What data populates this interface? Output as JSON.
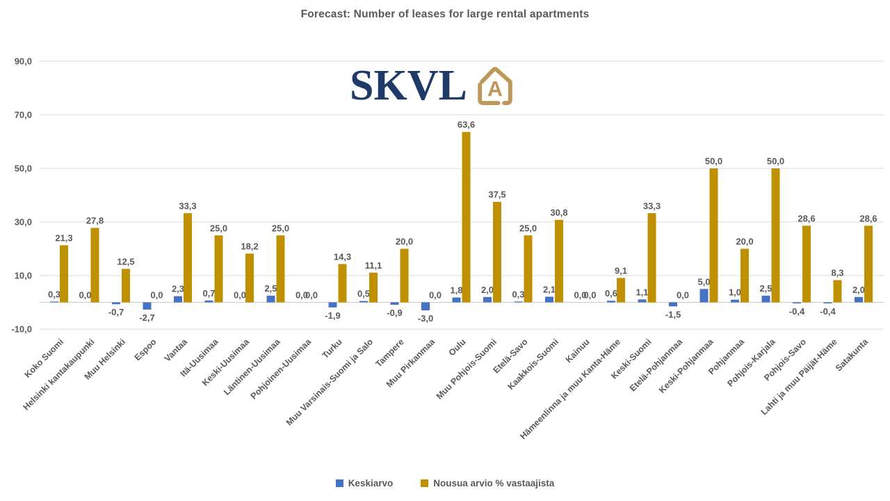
{
  "chart_data": {
    "type": "bar",
    "title": "Forecast: Number of leases for large rental apartments",
    "categories": [
      "Koko Suomi",
      "Helsinki kantakaupunki",
      "Muu Helsinki",
      "Espoo",
      "Vantaa",
      "Itä-Uusimaa",
      "Keski-Uusimaa",
      "Läntinen-Uusimaa",
      "Pohjoinen-Uusimaa",
      "Turku",
      "Muu Varsinais-Suomi ja Salo",
      "Tampere",
      "Muu Pirkanmaa",
      "Oulu",
      "Muu Pohjois-Suomi",
      "Etelä-Savo",
      "Kaakkois-Suomi",
      "Kainuu",
      "Hämeenlinna ja muu Kanta-Häme",
      "Keski-Suomi",
      "Etelä-Pohjanmaa",
      "Keski-Pohjanmaa",
      "Pohjanmaa",
      "Pohjois-Karjala",
      "Pohjois-Savo",
      "Lahti ja muu Päijät-Häme",
      "Satakunta"
    ],
    "series": [
      {
        "name": "Keskiarvo",
        "color": "#4472C4",
        "values": [
          0.3,
          0.0,
          -0.7,
          -2.7,
          2.3,
          0.7,
          0.0,
          2.5,
          0.0,
          -1.9,
          0.5,
          -0.9,
          -3.0,
          1.8,
          2.0,
          0.3,
          2.1,
          0.0,
          0.6,
          1.1,
          -1.5,
          5.0,
          1.0,
          2.5,
          -0.4,
          -0.4,
          2.0
        ]
      },
      {
        "name": "Nousua arvio % vastaajista",
        "color": "#BF9000",
        "values": [
          21.3,
          27.8,
          12.5,
          0.0,
          33.3,
          25.0,
          18.2,
          25.0,
          0.0,
          14.3,
          11.1,
          20.0,
          0.0,
          63.6,
          37.5,
          25.0,
          30.8,
          0.0,
          9.1,
          33.3,
          0.0,
          50.0,
          20.0,
          50.0,
          28.6,
          8.3,
          28.6
        ]
      }
    ],
    "ylim": [
      -10,
      90
    ],
    "yticks": [
      90,
      70,
      50,
      30,
      10,
      -10
    ],
    "ytick_labels": [
      "90,0",
      "70,0",
      "50,0",
      "30,0",
      "10,0",
      "-10,0"
    ],
    "decimal_separator": ",",
    "grid": true,
    "legend_position": "bottom"
  },
  "logo": {
    "wordmark": "SKVL",
    "icon_letter": "A",
    "navy": "#1F3A68",
    "gold": "#BE975B"
  },
  "colors": {
    "label_text": "#595959",
    "gridline": "#D9D9D9",
    "axis_line": "#C9C9C9",
    "background": "#FFFFFF"
  }
}
